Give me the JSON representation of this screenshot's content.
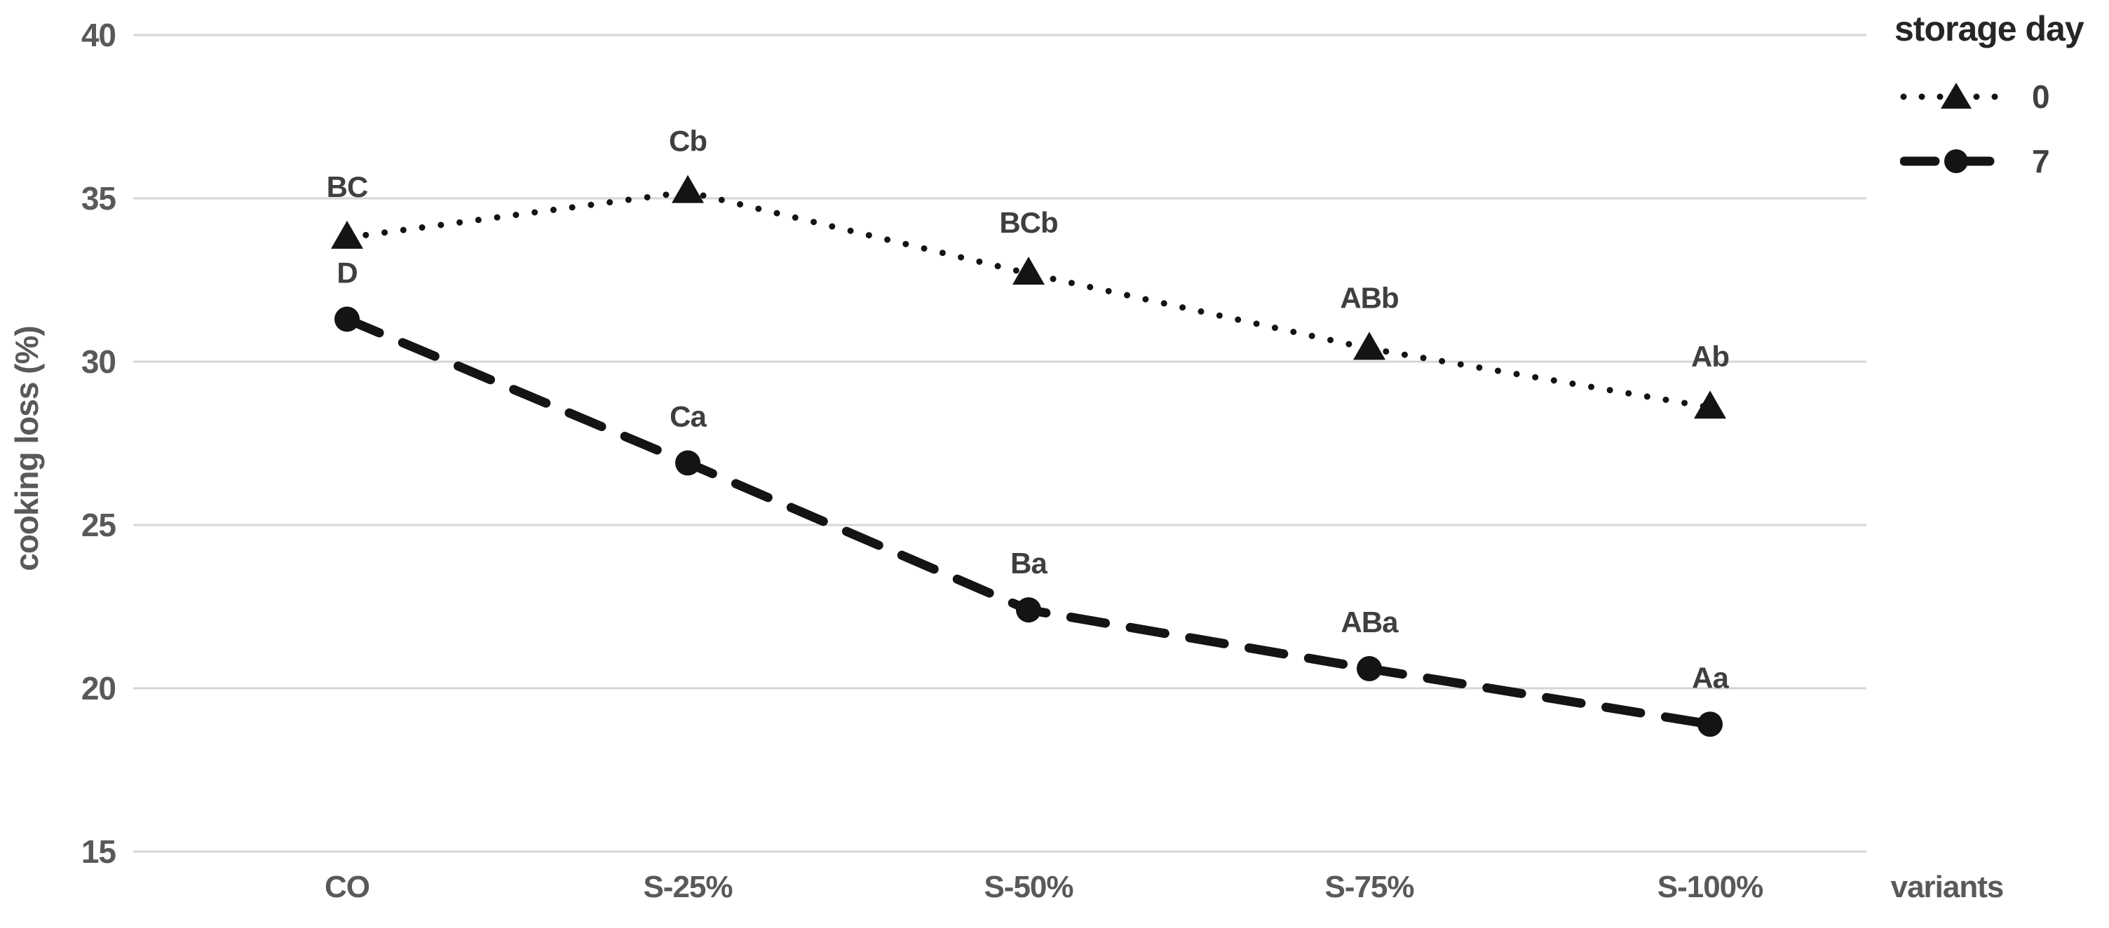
{
  "figure": {
    "background": "#ffffff"
  },
  "chart_data": {
    "type": "line",
    "title": "",
    "xlabel": "variants",
    "ylabel": "cooking loss (%)",
    "categories": [
      "CO",
      "S-25%",
      "S-50%",
      "S-75%",
      "S-100%"
    ],
    "series": [
      {
        "name": "0",
        "marker": "triangle",
        "line_style": "dotted",
        "values": [
          33.8,
          35.2,
          32.7,
          30.4,
          28.6
        ],
        "point_labels": [
          "BC",
          "Cb",
          "BCb",
          "ABb",
          "Ab"
        ]
      },
      {
        "name": "7",
        "marker": "circle",
        "line_style": "dashed",
        "values": [
          31.3,
          26.9,
          22.4,
          20.6,
          18.9
        ],
        "point_labels": [
          "D",
          "Ca",
          "Ba",
          "ABa",
          "Aa"
        ]
      }
    ],
    "ylim": [
      15,
      40
    ],
    "yticks": [
      40,
      35,
      30,
      25,
      20,
      15
    ],
    "grid": "horizontal",
    "legend": {
      "title": "storage day",
      "position": "top-right",
      "entries": [
        "0",
        "7"
      ]
    }
  },
  "colors": {
    "series": "#141414",
    "gridline": "#d6d6d6",
    "tick_label": "#595959",
    "data_label": "#3f3f3f",
    "legend_title": "#262626",
    "legend_label": "#404040",
    "axis_title": "#595959",
    "background": "#ffffff"
  }
}
